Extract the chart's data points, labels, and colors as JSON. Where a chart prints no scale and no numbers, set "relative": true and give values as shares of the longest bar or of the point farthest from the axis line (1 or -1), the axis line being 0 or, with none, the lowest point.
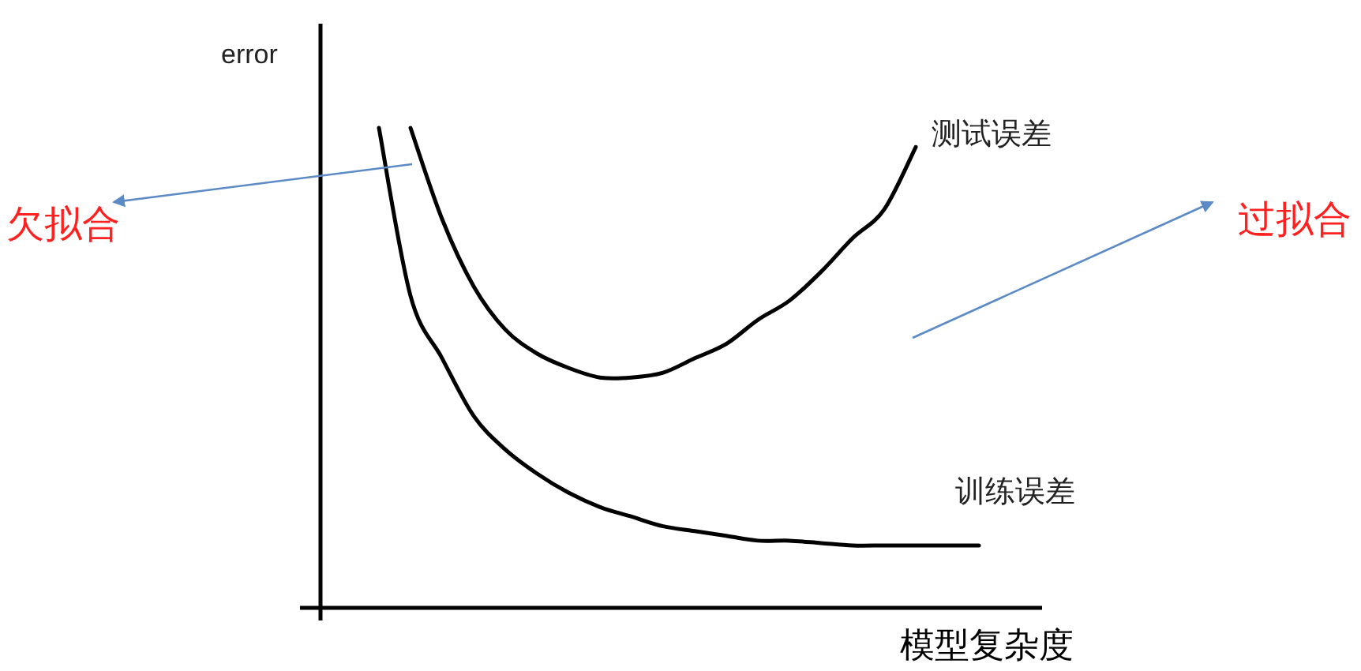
{
  "chart_data": {
    "type": "line",
    "relative": true,
    "xlabel": "模型复杂度",
    "ylabel": "error",
    "categories": [
      null,
      null,
      null,
      null,
      null,
      null,
      null,
      null,
      null,
      null,
      null,
      null,
      null,
      null,
      null,
      null,
      null,
      null,
      null,
      null
    ],
    "series": [
      {
        "name": "测试误差",
        "color": "#000000",
        "values": [
          null,
          1,
          0.81,
          0.67,
          0.58,
          0.53,
          0.5,
          0.48,
          0.48,
          0.49,
          0.52,
          0.55,
          0.6,
          0.64,
          0.7,
          0.77,
          0.83,
          0.96,
          null,
          null
        ]
      },
      {
        "name": "训练误差",
        "color": "#000000",
        "values": [
          1,
          0.65,
          0.52,
          0.4,
          0.33,
          0.28,
          0.24,
          0.21,
          0.19,
          0.17,
          0.16,
          0.15,
          0.14,
          0.14,
          0.135,
          0.13,
          0.13,
          0.13,
          0.13,
          0.13
        ]
      }
    ],
    "annotations": [
      "欠拟合",
      "过拟合"
    ],
    "marker": "none",
    "line_style": "solid"
  }
}
